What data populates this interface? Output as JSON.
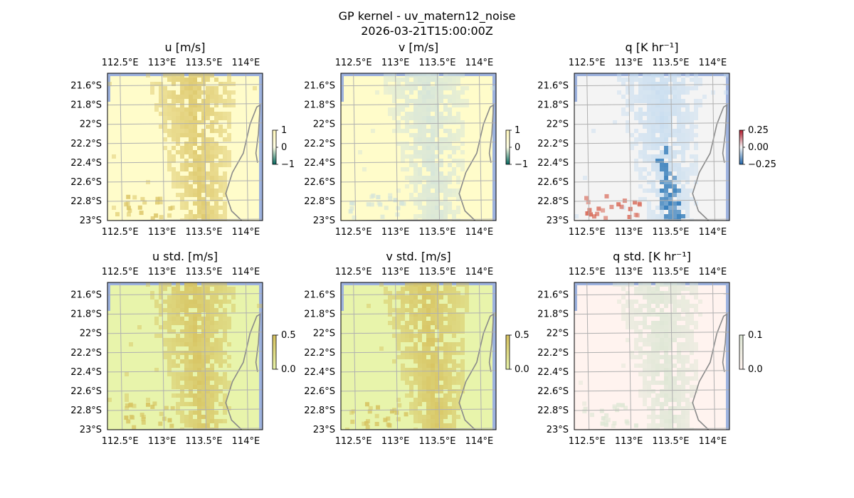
{
  "figure": {
    "title_line1": "GP kernel - uv_matern12_noise",
    "title_line2": "2026-03-21T15:00:00Z"
  },
  "chart_data": [
    {
      "type": "heatmap",
      "title": "u [m/s]",
      "projection": "lat-lon map",
      "lon_ticks": [
        "112.5°E",
        "113°E",
        "113.5°E",
        "114°E"
      ],
      "lat_ticks": [
        "21.6°S",
        "21.8°S",
        "22°S",
        "22.2°S",
        "22.4°S",
        "22.6°S",
        "22.8°S",
        "23°S"
      ],
      "lon_range": [
        112.35,
        114.2
      ],
      "lat_range": [
        -23.0,
        -21.47
      ],
      "colorbar": {
        "ticks": [
          "1",
          "0",
          "−1"
        ],
        "range": [
          -1,
          1
        ]
      },
      "colors": {
        "background": "#fffcca",
        "field": "#dcc668",
        "land": "#eef0dd",
        "ocean_edge": "#9db2de"
      },
      "field_pattern": "plume",
      "gridlines": true,
      "coastline": true
    },
    {
      "type": "heatmap",
      "title": "v [m/s]",
      "projection": "lat-lon map",
      "lon_ticks": [
        "112.5°E",
        "113°E",
        "113.5°E",
        "114°E"
      ],
      "lat_ticks": [
        "21.6°S",
        "21.8°S",
        "22°S",
        "22.2°S",
        "22.4°S",
        "22.6°S",
        "22.8°S",
        "23°S"
      ],
      "lon_range": [
        112.35,
        114.2
      ],
      "lat_range": [
        -23.0,
        -21.47
      ],
      "colorbar": {
        "ticks": [
          "1",
          "0",
          "−1"
        ],
        "range": [
          -1,
          1
        ]
      },
      "colors": {
        "background": "#fffcca",
        "field": "#d3e3da",
        "land": "#eef0dd",
        "ocean_edge": "#9db2de"
      },
      "field_pattern": "plume",
      "gridlines": true,
      "coastline": true
    },
    {
      "type": "heatmap",
      "title": "q [K hr⁻¹]",
      "projection": "lat-lon map",
      "lon_ticks": [
        "112.5°E",
        "113°E",
        "113.5°E",
        "114°E"
      ],
      "lat_ticks": [
        "21.6°S",
        "21.8°S",
        "22°S",
        "22.2°S",
        "22.4°S",
        "22.6°S",
        "22.8°S",
        "23°S"
      ],
      "lon_range": [
        112.35,
        114.2
      ],
      "lat_range": [
        -23.0,
        -21.47
      ],
      "colorbar": {
        "ticks": [
          "0.25",
          "0.00",
          "−0.25"
        ],
        "range": [
          -0.3,
          0.3
        ]
      },
      "colors": {
        "background": "#f4f4f4",
        "field": "#c6dcef",
        "strong": "#2171b5",
        "warm": "#d6604d",
        "land": "#f7f7f7",
        "ocean_edge": "#9db2de"
      },
      "field_pattern": "plume-diverging",
      "gridlines": true,
      "coastline": true
    },
    {
      "type": "heatmap",
      "title": "u std. [m/s]",
      "projection": "lat-lon map",
      "lon_ticks": [
        "112.5°E",
        "113°E",
        "113.5°E",
        "114°E"
      ],
      "lat_ticks": [
        "21.6°S",
        "21.8°S",
        "22°S",
        "22.2°S",
        "22.4°S",
        "22.6°S",
        "22.8°S",
        "23°S"
      ],
      "lon_range": [
        112.35,
        114.2
      ],
      "lat_range": [
        -23.0,
        -21.47
      ],
      "colorbar": {
        "ticks": [
          "0.5",
          "0.0"
        ],
        "range": [
          0,
          0.5
        ]
      },
      "colors": {
        "background": "#e8f4ab",
        "field": "#d6c15e",
        "land": "#eef0dd",
        "ocean_edge": "#9db2de"
      },
      "field_pattern": "plume",
      "gridlines": true,
      "coastline": true
    },
    {
      "type": "heatmap",
      "title": "v std. [m/s]",
      "projection": "lat-lon map",
      "lon_ticks": [
        "112.5°E",
        "113°E",
        "113.5°E",
        "114°E"
      ],
      "lat_ticks": [
        "21.6°S",
        "21.8°S",
        "22°S",
        "22.2°S",
        "22.4°S",
        "22.6°S",
        "22.8°S",
        "23°S"
      ],
      "lon_range": [
        112.35,
        114.2
      ],
      "lat_range": [
        -23.0,
        -21.47
      ],
      "colorbar": {
        "ticks": [
          "0.5",
          "0.0"
        ],
        "range": [
          0,
          0.5
        ]
      },
      "colors": {
        "background": "#e8f4ab",
        "field": "#d6c15e",
        "land": "#eef0dd",
        "ocean_edge": "#9db2de"
      },
      "field_pattern": "plume",
      "gridlines": true,
      "coastline": true
    },
    {
      "type": "heatmap",
      "title": "q std. [K hr⁻¹]",
      "projection": "lat-lon map",
      "lon_ticks": [
        "112.5°E",
        "113°E",
        "113.5°E",
        "114°E"
      ],
      "lat_ticks": [
        "21.6°S",
        "21.8°S",
        "22°S",
        "22.2°S",
        "22.4°S",
        "22.6°S",
        "22.8°S",
        "23°S"
      ],
      "lon_range": [
        112.35,
        114.2
      ],
      "lat_range": [
        -23.0,
        -21.47
      ],
      "colorbar": {
        "ticks": [
          "0.1",
          "0.0"
        ],
        "range": [
          0,
          0.1
        ]
      },
      "colors": {
        "background": "#fff3ef",
        "field": "#dde6d4",
        "land": "#fdf6f3",
        "ocean_edge": "#9db2de"
      },
      "field_pattern": "plume",
      "gridlines": true,
      "coastline": true
    }
  ]
}
